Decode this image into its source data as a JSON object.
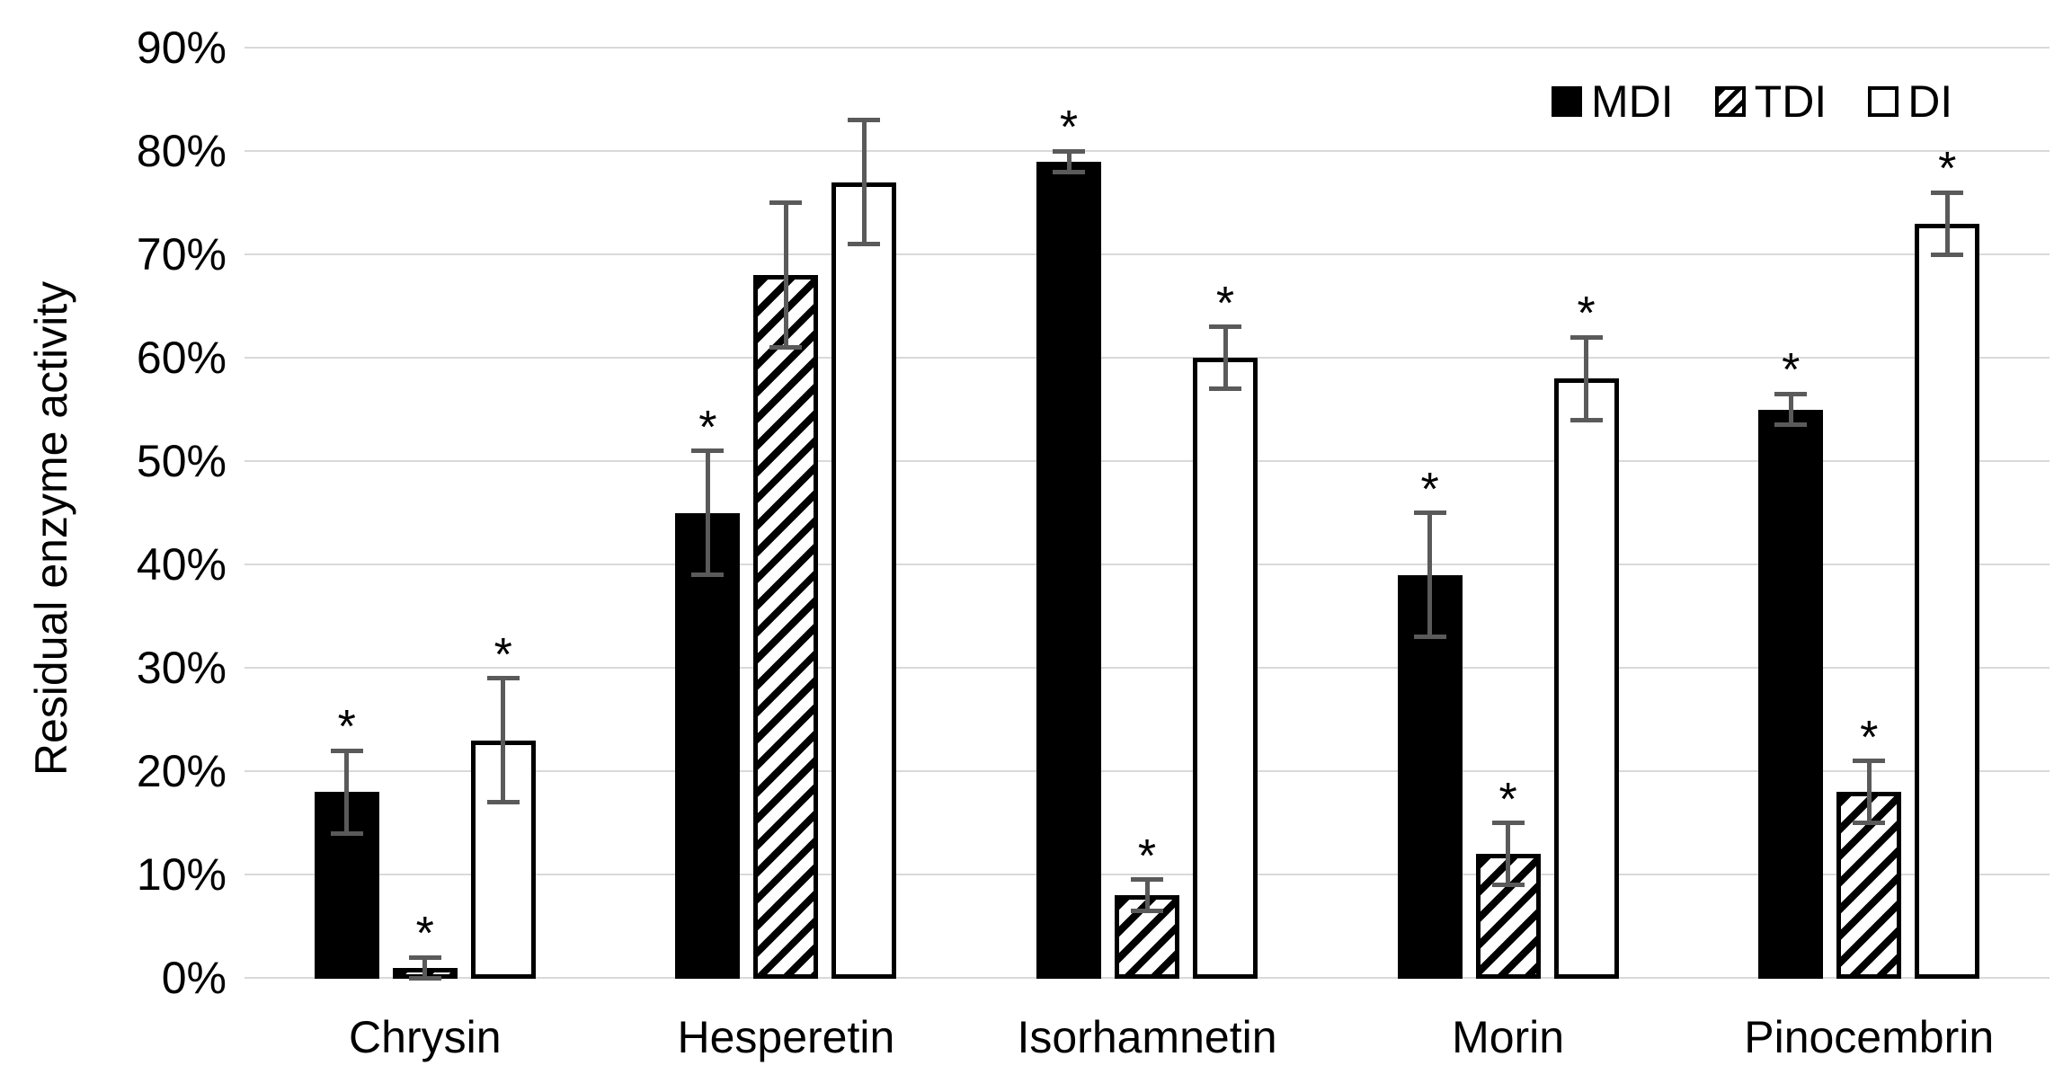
{
  "chart_data": {
    "type": "bar",
    "ylabel": "Residual enzyme activity",
    "ylim": [
      0,
      90
    ],
    "ytick_step": 10,
    "yticks": [
      "0%",
      "10%",
      "20%",
      "30%",
      "40%",
      "50%",
      "60%",
      "70%",
      "80%",
      "90%"
    ],
    "categories": [
      "Chrysin",
      "Hesperetin",
      "Isorhamnetin",
      "Morin",
      "Pinocembrin"
    ],
    "series": [
      {
        "name": "MDI",
        "style": "solid",
        "values": [
          18,
          45,
          79,
          39,
          55
        ],
        "errors": [
          4,
          6,
          1,
          6,
          1.5
        ],
        "significant": [
          true,
          true,
          true,
          true,
          true
        ]
      },
      {
        "name": "TDI",
        "style": "hatch",
        "values": [
          1,
          68,
          8,
          12,
          18
        ],
        "errors": [
          1,
          7,
          1.5,
          3,
          3
        ],
        "significant": [
          true,
          false,
          true,
          true,
          true
        ]
      },
      {
        "name": "DI",
        "style": "outline",
        "values": [
          23,
          77,
          60,
          58,
          73
        ],
        "errors": [
          6,
          6,
          3,
          4,
          3
        ],
        "significant": [
          true,
          false,
          true,
          true,
          true
        ]
      }
    ],
    "legend": {
      "position": "top-right",
      "items": [
        "MDI",
        "TDI",
        "DI"
      ]
    },
    "grid": true,
    "significance_marker": "*",
    "colors": {
      "bar_fill": "#000000",
      "bar_border": "#000000",
      "error_bar": "#5a5a5a",
      "gridline": "#d9d9d9",
      "text": "#000000",
      "background": "#ffffff"
    }
  }
}
